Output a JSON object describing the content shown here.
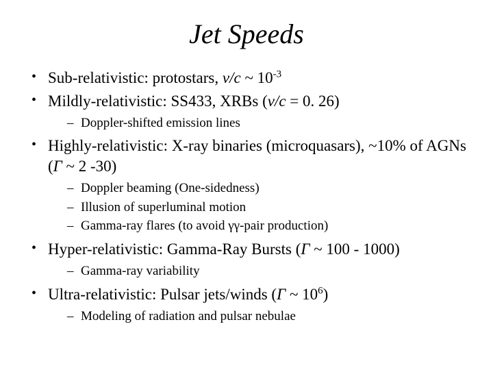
{
  "title": "Jet Speeds",
  "bullets": [
    {
      "category": "Sub-relativistic",
      "desc_pre": ": protostars, ",
      "var": "v/c",
      "desc_mid": " ~ 10",
      "sup": "-3",
      "desc_post": "",
      "subs": []
    },
    {
      "category": "Mildly-relativistic",
      "desc_pre": ": SS433, XRBs (",
      "var": "v/c",
      "desc_mid": " = 0. 26)",
      "sup": "",
      "desc_post": "",
      "subs": [
        "Doppler-shifted emission lines"
      ]
    },
    {
      "category": "Highly-relativistic",
      "desc_pre": ": X-ray binaries (microquasars), ~10% of AGNs (",
      "var": "Γ",
      "desc_mid": " ~ 2 -30)",
      "sup": "",
      "desc_post": "",
      "subs": [
        "Doppler beaming (One-sidedness)",
        "Illusion of superluminal motion",
        "Gamma-ray flares (to avoid γγ-pair production)"
      ]
    },
    {
      "category": "Hyper-relativistic",
      "desc_pre": ": Gamma-Ray Bursts (",
      "var": "Γ",
      "desc_mid": " ~ 100 - 1000)",
      "sup": "",
      "desc_post": "",
      "subs": [
        "Gamma-ray variability"
      ]
    },
    {
      "category": "Ultra-relativistic",
      "desc_pre": ": Pulsar jets/winds (",
      "var": "Γ",
      "desc_mid": " ~ 10",
      "sup": "6",
      "desc_post": ")",
      "subs": [
        "Modeling of radiation and pulsar nebulae"
      ]
    }
  ],
  "style": {
    "background_color": "#ffffff",
    "text_color": "#000000",
    "title_fontsize": 40,
    "bullet_fontsize": 23,
    "sub_fontsize": 19,
    "font_family": "Times New Roman"
  }
}
